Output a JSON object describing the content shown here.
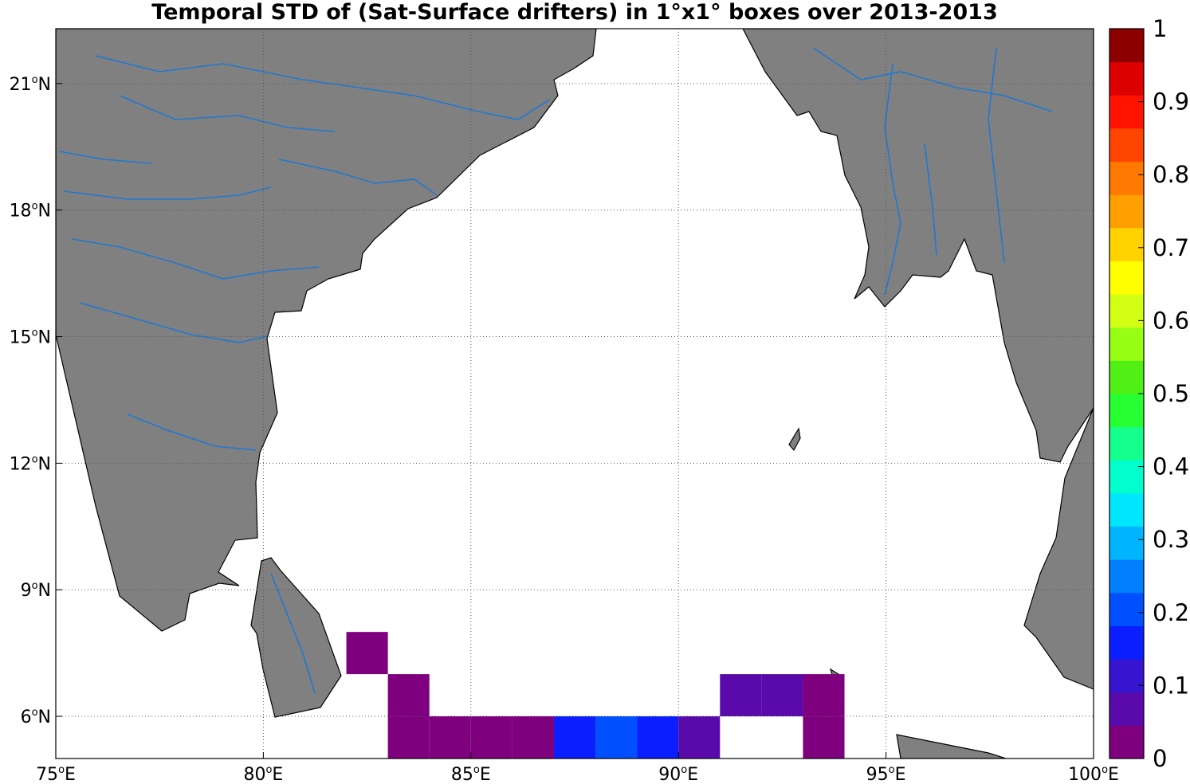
{
  "title": "Temporal STD of (Sat-Surface drifters) in 1°x1° boxes over 2013-2013",
  "map": {
    "lon_range": [
      75,
      100
    ],
    "lat_range": [
      5,
      22.3
    ],
    "lon_ticks": [
      {
        "value": 75,
        "label": "75",
        "unit": "E"
      },
      {
        "value": 80,
        "label": "80",
        "unit": "E"
      },
      {
        "value": 85,
        "label": "85",
        "unit": "E"
      },
      {
        "value": 90,
        "label": "90",
        "unit": "E"
      },
      {
        "value": 95,
        "label": "95",
        "unit": "E"
      },
      {
        "value": 100,
        "label": "100",
        "unit": "E"
      }
    ],
    "lat_ticks": [
      {
        "value": 6,
        "label": "6",
        "unit": "N"
      },
      {
        "value": 9,
        "label": "9",
        "unit": "N"
      },
      {
        "value": 12,
        "label": "12",
        "unit": "N"
      },
      {
        "value": 15,
        "label": "15",
        "unit": "N"
      },
      {
        "value": 18,
        "label": "18",
        "unit": "N"
      },
      {
        "value": 21,
        "label": "21",
        "unit": "N"
      }
    ],
    "degree_symbol": "o",
    "grid": true,
    "land_color": "#808080",
    "river_color": "#1f78d2",
    "coast_color": "#000000"
  },
  "chart_data": {
    "type": "heatmap",
    "value_range": [
      0,
      1
    ],
    "cell_size_deg": 1,
    "cells": [
      {
        "lon": 82,
        "lat": 7,
        "value": 0.01
      },
      {
        "lon": 83,
        "lat": 6,
        "value": 0.01
      },
      {
        "lon": 83,
        "lat": 5,
        "value": 0.01
      },
      {
        "lon": 84,
        "lat": 5,
        "value": 0.01
      },
      {
        "lon": 85,
        "lat": 5,
        "value": 0.01
      },
      {
        "lon": 86,
        "lat": 5,
        "value": 0.01
      },
      {
        "lon": 87,
        "lat": 5,
        "value": 0.14
      },
      {
        "lon": 88,
        "lat": 5,
        "value": 0.22
      },
      {
        "lon": 89,
        "lat": 5,
        "value": 0.14
      },
      {
        "lon": 90,
        "lat": 5,
        "value": 0.09
      },
      {
        "lon": 91,
        "lat": 6,
        "value": 0.09
      },
      {
        "lon": 92,
        "lat": 6,
        "value": 0.09
      },
      {
        "lon": 93,
        "lat": 6,
        "value": 0.03
      },
      {
        "lon": 93,
        "lat": 5,
        "value": 0.03
      }
    ]
  },
  "colorbar": {
    "ticks": [
      "0",
      "0.1",
      "0.2",
      "0.3",
      "0.4",
      "0.5",
      "0.6",
      "0.7",
      "0.8",
      "0.9",
      "1"
    ],
    "colors": [
      "#7f007f",
      "#5a0aaa",
      "#3614d0",
      "#0a1eff",
      "#0050ff",
      "#0080ff",
      "#00b4ff",
      "#00e6ff",
      "#00ffcc",
      "#14ff8c",
      "#28ff32",
      "#50f014",
      "#96ff14",
      "#d2ff14",
      "#ffff00",
      "#ffd200",
      "#ffa000",
      "#ff7800",
      "#ff4600",
      "#ff1400",
      "#dc0000",
      "#8c0000"
    ]
  }
}
